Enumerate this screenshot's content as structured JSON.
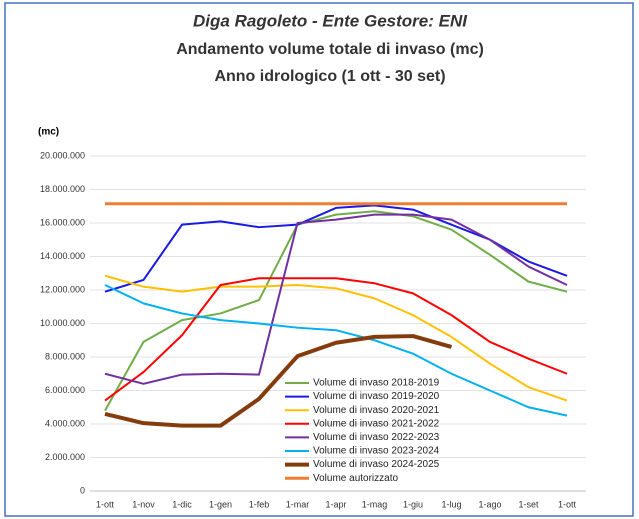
{
  "chart_data": {
    "type": "line",
    "title": "Diga Ragoleto - Ente Gestore: ENI",
    "subtitle": [
      "Andamento volume totale di invaso (mc)",
      "Anno idrologico (1 ott - 30 set)"
    ],
    "y_label": "(mc)",
    "categories": [
      "1-ott",
      "1-nov",
      "1-dic",
      "1-gen",
      "1-feb",
      "1-mar",
      "1-apr",
      "1-mag",
      "1-giu",
      "1-lug",
      "1-ago",
      "1-set",
      "1-ott"
    ],
    "ylim": [
      0,
      20000000
    ],
    "yticks": [
      0,
      {
        "value": 2000000,
        "label": "2.000.000"
      },
      {
        "value": 4000000,
        "label": "4.000.000"
      },
      {
        "value": 6000000,
        "label": "6.000.000"
      },
      {
        "value": 8000000,
        "label": "8.000.000"
      },
      {
        "value": 10000000,
        "label": "10.000.000"
      },
      {
        "value": 12000000,
        "label": "12.000.000"
      },
      {
        "value": 14000000,
        "label": "14.000.000"
      },
      {
        "value": 16000000,
        "label": "16.000.000"
      },
      {
        "value": 18000000,
        "label": "18.000.000"
      },
      {
        "value": 20000000,
        "label": "20.000.000"
      }
    ],
    "grid": true,
    "legend": "bottom",
    "series": [
      {
        "name": "Volume di invaso 2018-2019",
        "color": "#70ad47",
        "values": [
          4800000,
          8900000,
          10200000,
          10600000,
          11400000,
          15900000,
          16500000,
          16700000,
          16400000,
          15600000,
          14100000,
          12500000,
          11900000
        ]
      },
      {
        "name": "Volume di invaso 2019-2020",
        "color": "#1a1ae6",
        "values": [
          11900000,
          12600000,
          15900000,
          16100000,
          15750000,
          15900000,
          16900000,
          17050000,
          16800000,
          15900000,
          15000000,
          13700000,
          12850000
        ]
      },
      {
        "name": "Volume di invaso 2020-2021",
        "color": "#ffc000",
        "values": [
          12850000,
          12200000,
          11900000,
          12200000,
          12200000,
          12300000,
          12100000,
          11500000,
          10500000,
          9200000,
          7600000,
          6200000,
          5400000
        ]
      },
      {
        "name": "Volume di invaso 2021-2022",
        "color": "#ff0000",
        "values": [
          5400000,
          7100000,
          9300000,
          12300000,
          12700000,
          12700000,
          12700000,
          12400000,
          11800000,
          10500000,
          8900000,
          7900000,
          7000000
        ]
      },
      {
        "name": "Volume di invaso 2022-2023",
        "color": "#7030a0",
        "values": [
          7000000,
          6400000,
          6950000,
          7000000,
          6950000,
          16000000,
          16200000,
          16500000,
          16500000,
          16200000,
          15000000,
          13400000,
          12300000
        ]
      },
      {
        "name": "Volume di invaso 2023-2024",
        "color": "#00b0f0",
        "values": [
          12300000,
          11200000,
          10600000,
          10200000,
          10000000,
          9750000,
          9600000,
          9000000,
          8200000,
          7000000,
          6000000,
          5000000,
          4500000
        ]
      },
      {
        "name": "Volume di invaso 2024-2025",
        "color": "#843c0c",
        "width": 4,
        "values": [
          4600000,
          4050000,
          3900000,
          3900000,
          5500000,
          8050000,
          8850000,
          9200000,
          9250000,
          8600000,
          null,
          null,
          null
        ]
      },
      {
        "name": "Volume autorizzato",
        "color": "#ed7d31",
        "width": 3,
        "values": [
          17150000,
          17150000,
          17150000,
          17150000,
          17150000,
          17150000,
          17150000,
          17150000,
          17150000,
          17150000,
          17150000,
          17150000,
          17150000
        ]
      }
    ]
  }
}
